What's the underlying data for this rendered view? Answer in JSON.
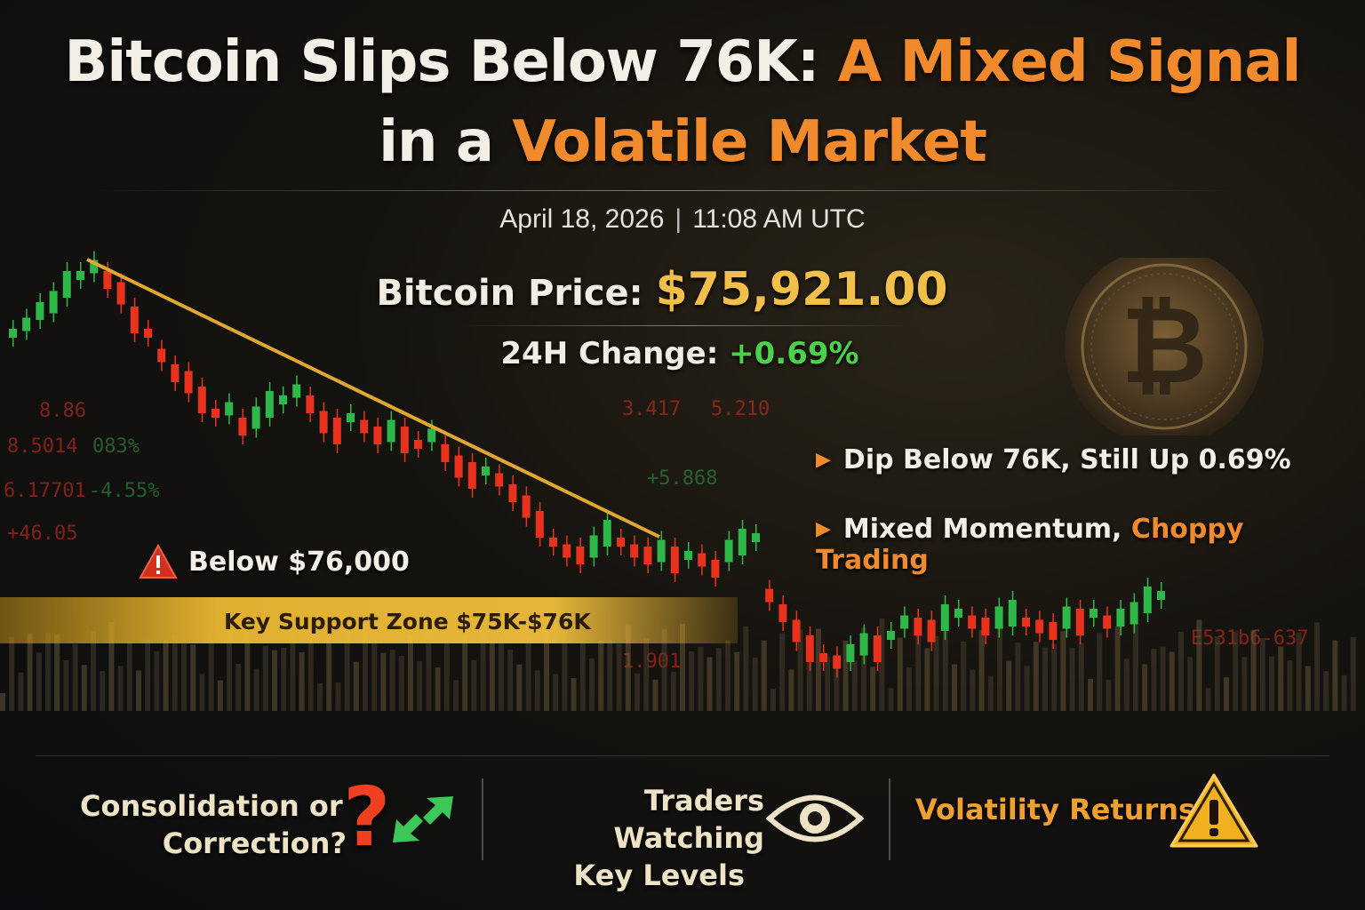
{
  "headline": {
    "line1_white": "Bitcoin Slips Below 76K:",
    "line1_orange": "A Mixed Signal",
    "line2_white": "in a",
    "line2_orange": "Volatile Market"
  },
  "dateline": {
    "date": "April 18, 2026",
    "separator": "|",
    "time": "11:08 AM UTC"
  },
  "price": {
    "label": "Bitcoin Price:",
    "value": "$75,921.00"
  },
  "change": {
    "label": "24H Change:",
    "value": "+0.69%"
  },
  "bullets": [
    {
      "text": "Dip Below 76K, Still Up 0.69%"
    },
    {
      "text": "Mixed Momentum,",
      "highlight": "Choppy Trading"
    }
  ],
  "chart_annotations": {
    "below_label": "Below $76,000",
    "support_label": "Key Support Zone $75K-$76K"
  },
  "background_tickers": [
    {
      "text": "8.86",
      "color": "#e03020"
    },
    {
      "text": "8.5014",
      "color": "#e03020"
    },
    {
      "text": "083%",
      "color": "#30a040"
    },
    {
      "text": "6.17701",
      "color": "#e03020"
    },
    {
      "text": "-4.55%",
      "color": "#30a040"
    },
    {
      "text": "+46.05",
      "color": "#e03020"
    },
    {
      "text": "3.417",
      "color": "#e03020"
    },
    {
      "text": "5.210",
      "color": "#e03020"
    },
    {
      "text": "+5.868",
      "color": "#30a040"
    },
    {
      "text": "1.901",
      "color": "#e03020"
    },
    {
      "text": "E531b6-637",
      "color": "#e03020"
    }
  ],
  "bottom": {
    "item1_line1": "Consolidation or",
    "item1_line2": "Correction?",
    "item1_mark": "?",
    "item2_line1": "Traders Watching",
    "item2_line2": "Key Levels",
    "item3": "Volatility Returns"
  },
  "colors": {
    "accent_orange": "#f08a2c",
    "price_gold": "#f2c04a",
    "positive_green": "#4bd14a",
    "candle_up": "#2fb84a",
    "candle_down": "#e8321e",
    "trendline": "#e0a830"
  },
  "icons": [
    "warning-icon",
    "question-mark-icon",
    "swap-arrows-icon",
    "eye-icon",
    "warning-triangle-icon",
    "bitcoin-coin-icon",
    "arrow-bullet-icon"
  ]
}
